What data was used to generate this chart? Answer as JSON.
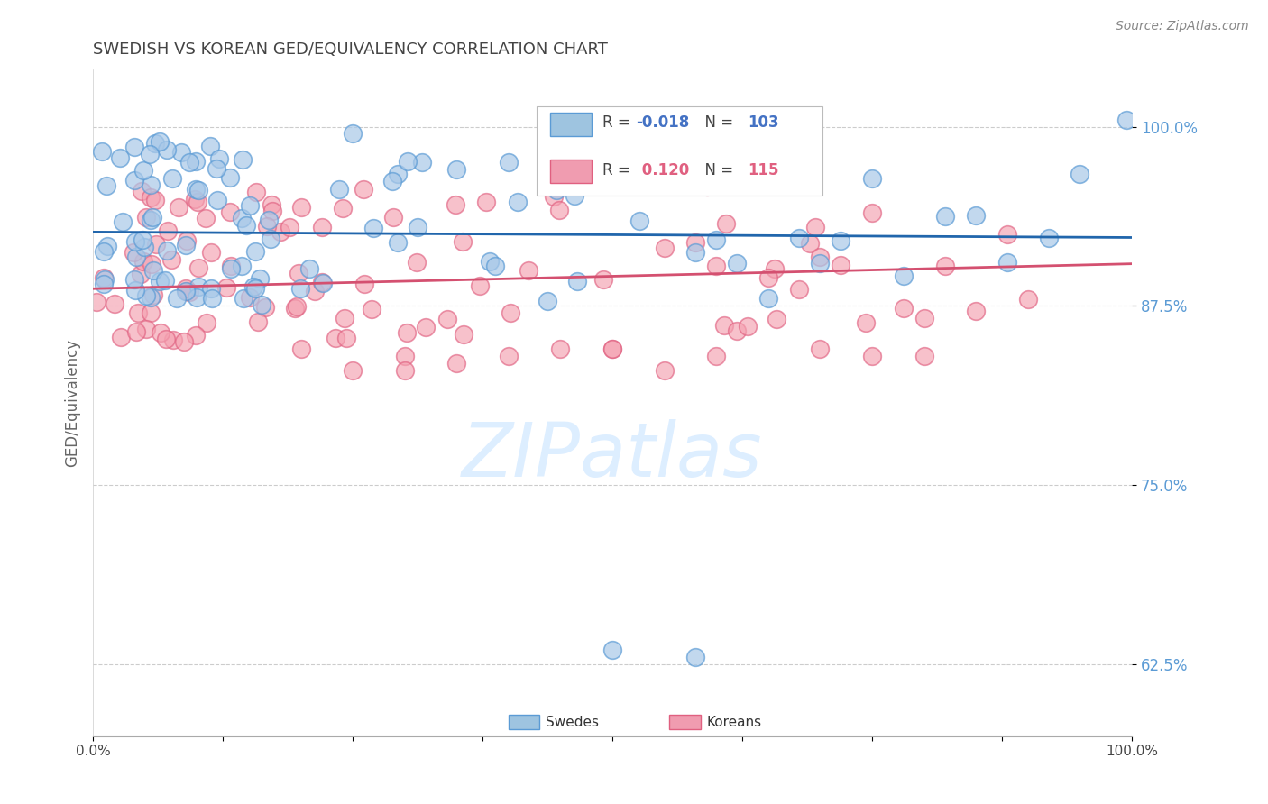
{
  "title": "SWEDISH VS KOREAN GED/EQUIVALENCY CORRELATION CHART",
  "source": "Source: ZipAtlas.com",
  "ylabel": "GED/Equivalency",
  "xlim": [
    0.0,
    1.0
  ],
  "ylim": [
    0.575,
    1.04
  ],
  "yticks": [
    0.625,
    0.75,
    0.875,
    1.0
  ],
  "ytick_labels": [
    "62.5%",
    "75.0%",
    "87.5%",
    "100.0%"
  ],
  "xtick_vals": [
    0.0,
    0.125,
    0.25,
    0.375,
    0.5,
    0.625,
    0.75,
    0.875,
    1.0
  ],
  "xtick_labels": [
    "0.0%",
    "",
    "",
    "",
    "",
    "",
    "",
    "",
    "100.0%"
  ],
  "blue_R": -0.018,
  "blue_N": 103,
  "pink_R": 0.12,
  "pink_N": 115,
  "blue_face": "#a8c8e8",
  "blue_edge": "#5b9bd5",
  "pink_face": "#f4a0b0",
  "pink_edge": "#e06080",
  "blue_line_color": "#2166ac",
  "pink_line_color": "#d45070",
  "blue_legend_fill": "#9ec4e0",
  "pink_legend_fill": "#f09cb0",
  "background_color": "#ffffff",
  "grid_color": "#cccccc",
  "ytick_color": "#5b9bd5",
  "title_color": "#444444",
  "source_color": "#888888",
  "watermark_color": "#ddeeff",
  "legend_text_blue": "#4472c4",
  "legend_text_pink": "#e06080"
}
